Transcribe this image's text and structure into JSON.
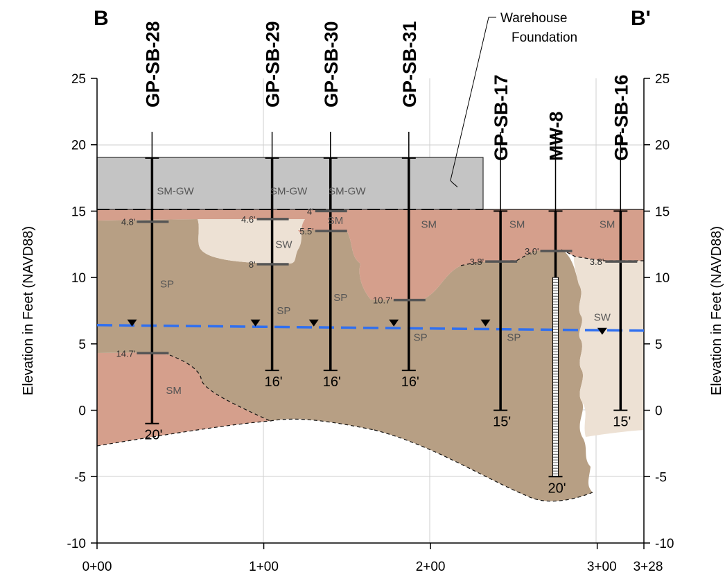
{
  "section": {
    "left_label": "B",
    "right_label": "B'"
  },
  "axes": {
    "y_left_title": "Elevation in Feet (NAVD88)",
    "y_right_title": "Elevation in Feet (NAVD88)",
    "y_ticks": [
      "25",
      "20",
      "15",
      "10",
      "5",
      "0",
      "-5",
      "-10"
    ],
    "x_ticks": [
      {
        "label": "0+00",
        "station": 0
      },
      {
        "label": "1+00",
        "station": 100
      },
      {
        "label": "2+00",
        "station": 200
      },
      {
        "label": "3+00",
        "station": 300
      },
      {
        "label": "3+28",
        "station": 328
      }
    ],
    "ylim": [
      -10,
      25
    ],
    "xlim": [
      0,
      328
    ]
  },
  "callout": {
    "line1": "Warehouse",
    "line2": "Foundation"
  },
  "water_table_elevation": 6.1,
  "borings": [
    {
      "name": "GP-SB-28",
      "station": 33,
      "top": 19,
      "bottom": -1,
      "total_depth": "20'",
      "contacts": [
        {
          "label": "4.8'",
          "elev": 14.2
        },
        {
          "label": "14.7'",
          "elev": 4.3
        }
      ]
    },
    {
      "name": "GP-SB-29",
      "station": 105,
      "top": 19,
      "bottom": 3,
      "total_depth": "16'",
      "contacts": [
        {
          "label": "4.6'",
          "elev": 14.4
        },
        {
          "label": "8'",
          "elev": 11
        }
      ]
    },
    {
      "name": "GP-SB-30",
      "station": 140,
      "top": 19,
      "bottom": 3,
      "total_depth": "16'",
      "contacts": [
        {
          "label": "4'",
          "elev": 15
        },
        {
          "label": "5.5'",
          "elev": 13.5
        }
      ]
    },
    {
      "name": "GP-SB-31",
      "station": 187,
      "top": 19,
      "bottom": 3,
      "total_depth": "16'",
      "contacts": [
        {
          "label": "10.7'",
          "elev": 8.3
        }
      ]
    },
    {
      "name": "GP-SB-17",
      "station": 242,
      "top": 15,
      "bottom": 0,
      "total_depth": "15'",
      "contacts": [
        {
          "label": "3.8'",
          "elev": 11.2
        }
      ]
    },
    {
      "name": "MW-8",
      "station": 275,
      "top": 15,
      "bottom": -5,
      "total_depth": "20'",
      "contacts": [
        {
          "label": "3.0'",
          "elev": 12
        }
      ]
    },
    {
      "name": "GP-SB-16",
      "station": 314,
      "top": 15,
      "bottom": 0,
      "total_depth": "15'",
      "contacts": [
        {
          "label": "3.8'",
          "elev": 11.2
        }
      ]
    }
  ],
  "soil_labels": [
    {
      "text": "SM-GW",
      "station": 47,
      "elev": 16.5
    },
    {
      "text": "SM-GW",
      "station": 115,
      "elev": 16.5
    },
    {
      "text": "SM-GW",
      "station": 150,
      "elev": 16.5
    },
    {
      "text": "SM",
      "station": 143,
      "elev": 14.3
    },
    {
      "text": "SW",
      "station": 112,
      "elev": 12.5
    },
    {
      "text": "SM",
      "station": 199,
      "elev": 14
    },
    {
      "text": "SM",
      "station": 252,
      "elev": 14
    },
    {
      "text": "SM",
      "station": 306,
      "elev": 14
    },
    {
      "text": "SP",
      "station": 42,
      "elev": 9.5
    },
    {
      "text": "SP",
      "station": 112,
      "elev": 7.5
    },
    {
      "text": "SP",
      "station": 146,
      "elev": 8.5
    },
    {
      "text": "SP",
      "station": 194,
      "elev": 5.5
    },
    {
      "text": "SP",
      "station": 250,
      "elev": 5.5
    },
    {
      "text": "SW",
      "station": 303,
      "elev": 7
    },
    {
      "text": "SM",
      "station": 46,
      "elev": 1.5
    }
  ],
  "colors": {
    "foundation": "#c4c4c4",
    "sm": "#d59f8c",
    "sp": "#b79f84",
    "sw": "#ede1d4",
    "water_table": "#2f6ff0",
    "grid": "#cfcfcf"
  }
}
